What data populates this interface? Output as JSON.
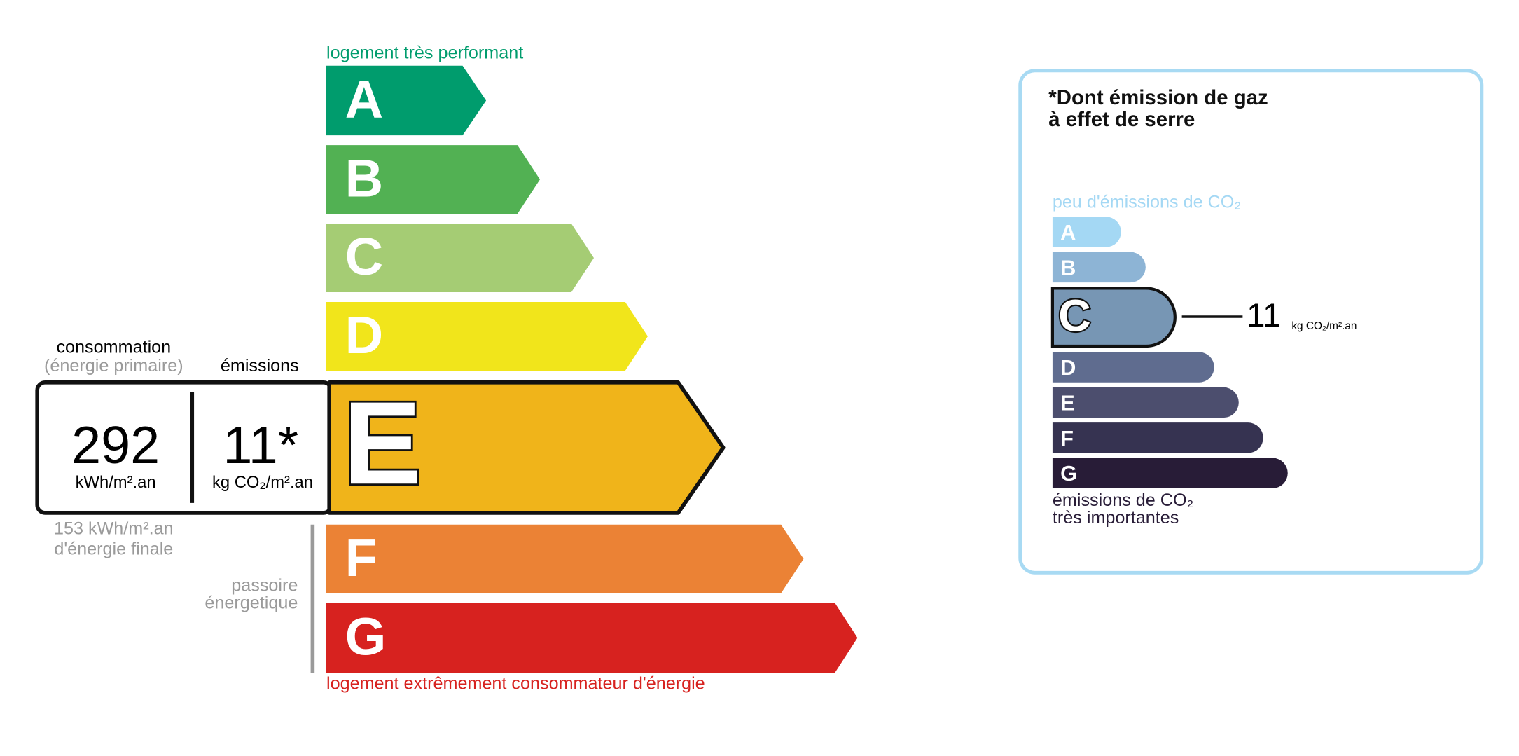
{
  "energy": {
    "top_note": "logement très performant",
    "bottom_note": "logement extrêmement consommateur d'énergie",
    "classes": [
      "A",
      "B",
      "C",
      "D",
      "E",
      "F",
      "G"
    ],
    "consumption_label": "consommation",
    "consumption_sub": "(énergie primaire)",
    "emissions_label": "émissions",
    "consumption_value": "292",
    "consumption_unit": "kWh/m².an",
    "emissions_value": "11*",
    "emissions_unit": "kg CO₂/m².an",
    "final_value": "153 kWh/m².an",
    "final_label": "d'énergie finale",
    "passoire": [
      "passoire",
      "énergetique"
    ]
  },
  "ghg": {
    "title": [
      "*Dont émission de gaz",
      "à effet de serre"
    ],
    "top_note": "peu d'émissions de CO₂",
    "classes": [
      "A",
      "B",
      "C",
      "D",
      "E",
      "F",
      "G"
    ],
    "value": "11",
    "unit": "kg CO₂/m².an",
    "bottom_note": [
      "émissions de CO₂",
      "très importantes"
    ]
  }
}
